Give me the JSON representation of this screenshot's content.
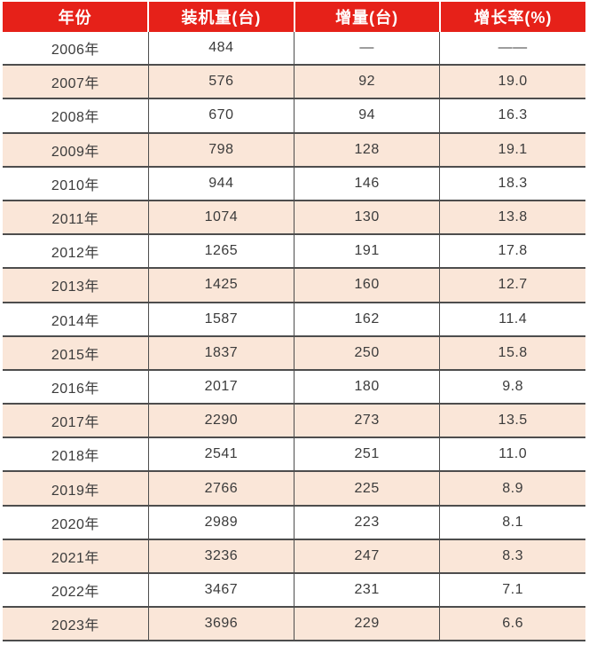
{
  "colors": {
    "header_bg": "#e62119",
    "header_text": "#ffffff",
    "row_alt_bg": "#fae6d8",
    "row_bg": "#ffffff",
    "rule": "#4d4d4d",
    "cell_text": "#3b3b3b"
  },
  "chart_data": {
    "type": "table",
    "columns": [
      "年份",
      "装机量(台)",
      "增量(台)",
      "增长率(%)"
    ],
    "rows": [
      [
        "2006年",
        "484",
        "—",
        "——"
      ],
      [
        "2007年",
        "576",
        "92",
        "19.0"
      ],
      [
        "2008年",
        "670",
        "94",
        "16.3"
      ],
      [
        "2009年",
        "798",
        "128",
        "19.1"
      ],
      [
        "2010年",
        "944",
        "146",
        "18.3"
      ],
      [
        "2011年",
        "1074",
        "130",
        "13.8"
      ],
      [
        "2012年",
        "1265",
        "191",
        "17.8"
      ],
      [
        "2013年",
        "1425",
        "160",
        "12.7"
      ],
      [
        "2014年",
        "1587",
        "162",
        "11.4"
      ],
      [
        "2015年",
        "1837",
        "250",
        "15.8"
      ],
      [
        "2016年",
        "2017",
        "180",
        "9.8"
      ],
      [
        "2017年",
        "2290",
        "273",
        "13.5"
      ],
      [
        "2018年",
        "2541",
        "251",
        "11.0"
      ],
      [
        "2019年",
        "2766",
        "225",
        "8.9"
      ],
      [
        "2020年",
        "2989",
        "223",
        "8.1"
      ],
      [
        "2021年",
        "3236",
        "247",
        "8.3"
      ],
      [
        "2022年",
        "3467",
        "231",
        "7.1"
      ],
      [
        "2023年",
        "3696",
        "229",
        "6.6"
      ]
    ],
    "title": "",
    "notes": "Alternating row shading: odd data rows white, even data rows peach; no rule between header and first data row; 2px rules between data rows and at table bottom; 1px vertical rules between body columns; 2px white gaps between header cells."
  }
}
